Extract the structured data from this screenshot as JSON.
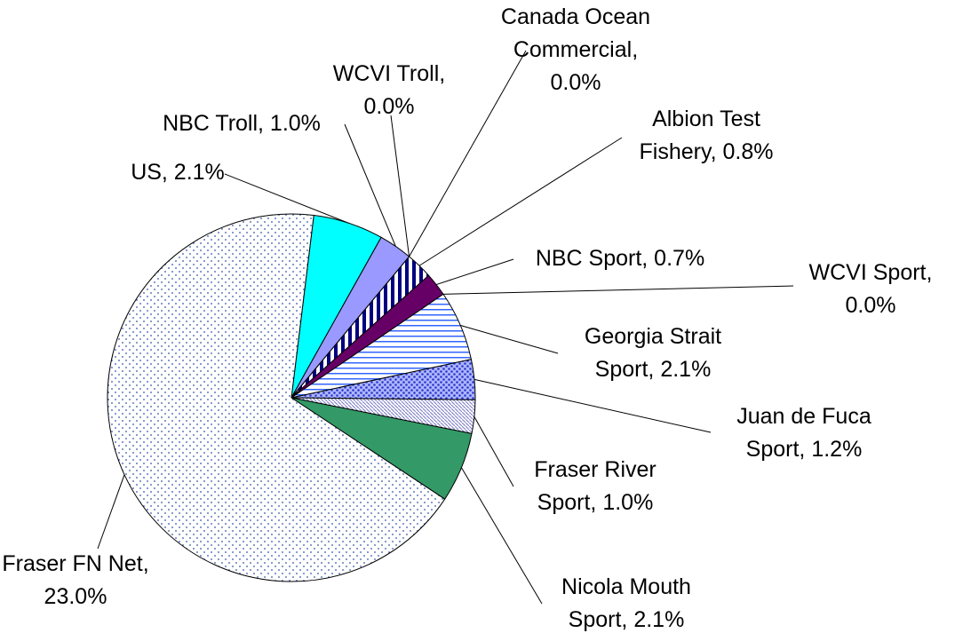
{
  "chart_data": {
    "type": "pie",
    "value_labels": [
      "US, 2.1%",
      "NBC Troll, 1.0%",
      "WCVI Troll, 0.0%",
      "Canada Ocean Commercial, 0.0%",
      "Albion Test Fishery, 0.8%",
      "NBC Sport, 0.7%",
      "WCVI Sport, 0.0%",
      "Georgia Strait Sport, 2.1%",
      "Juan de Fuca Sport, 1.2%",
      "Fraser River Sport, 1.0%",
      "Nicola Mouth Sport, 2.1%",
      "Fraser FN Net, 23.0%"
    ],
    "values": [
      2.1,
      1.0,
      0.0,
      0.0,
      0.8,
      0.7,
      0.0,
      2.1,
      1.2,
      1.0,
      2.1,
      23.0
    ],
    "colors": [
      "#00ffff",
      "#9999ff",
      "#9999ff",
      "#000080",
      "#000080",
      "#660066",
      "#660066",
      "#3366ff",
      "#3333cc",
      "#8888cc",
      "#339966",
      "#3355aa"
    ]
  }
}
